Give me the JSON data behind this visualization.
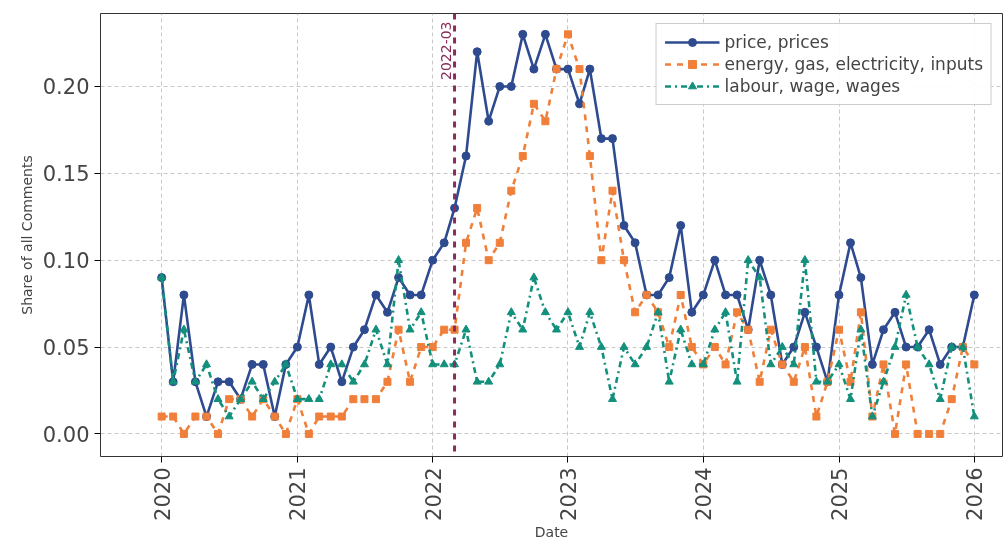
{
  "chart_data": {
    "type": "line",
    "xlabel": "Date",
    "ylabel": "Share of all Comments",
    "x": [
      "2020-01",
      "2020-02",
      "2020-03",
      "2020-04",
      "2020-05",
      "2020-06",
      "2020-07",
      "2020-08",
      "2020-09",
      "2020-10",
      "2020-11",
      "2020-12",
      "2021-01",
      "2021-02",
      "2021-03",
      "2021-04",
      "2021-05",
      "2021-06",
      "2021-07",
      "2021-08",
      "2021-09",
      "2021-10",
      "2021-11",
      "2021-12",
      "2022-01",
      "2022-02",
      "2022-03",
      "2022-04",
      "2022-05",
      "2022-06",
      "2022-07",
      "2022-08",
      "2022-09",
      "2022-10",
      "2022-11",
      "2022-12",
      "2023-01",
      "2023-02",
      "2023-03",
      "2023-04",
      "2023-05",
      "2023-06",
      "2023-07",
      "2023-08",
      "2023-09",
      "2023-10",
      "2023-11",
      "2023-12",
      "2024-01",
      "2024-02",
      "2024-03",
      "2024-04",
      "2024-05",
      "2024-06",
      "2024-07",
      "2024-08",
      "2024-09",
      "2024-10",
      "2024-11",
      "2024-12",
      "2025-01",
      "2025-02",
      "2025-03",
      "2025-04",
      "2025-05",
      "2025-06",
      "2025-07",
      "2025-08",
      "2025-09",
      "2025-10",
      "2025-11",
      "2025-12",
      "2026-01"
    ],
    "series": [
      {
        "name": "price, prices",
        "color": "#2f4b8f",
        "marker": "circle",
        "line_style": "solid",
        "values": [
          0.09,
          0.03,
          0.08,
          0.03,
          0.01,
          0.03,
          0.03,
          0.02,
          0.04,
          0.04,
          0.01,
          0.04,
          0.05,
          0.08,
          0.04,
          0.05,
          0.03,
          0.05,
          0.06,
          0.08,
          0.07,
          0.09,
          0.08,
          0.08,
          0.1,
          0.11,
          0.13,
          0.16,
          0.22,
          0.18,
          0.2,
          0.2,
          0.23,
          0.21,
          0.23,
          0.21,
          0.21,
          0.19,
          0.21,
          0.17,
          0.17,
          0.12,
          0.11,
          0.08,
          0.08,
          0.09,
          0.12,
          0.07,
          0.08,
          0.1,
          0.08,
          0.08,
          0.06,
          0.1,
          0.08,
          0.04,
          0.05,
          0.07,
          0.05,
          0.03,
          0.08,
          0.11,
          0.09,
          0.04,
          0.06,
          0.07,
          0.05,
          0.05,
          0.06,
          0.04,
          0.05,
          0.05,
          0.08
        ]
      },
      {
        "name": "energy, gas, electricity, inputs",
        "color": "#f07f3a",
        "marker": "square",
        "line_style": "dashed",
        "values": [
          0.01,
          0.01,
          0.0,
          0.01,
          0.01,
          0.0,
          0.02,
          0.02,
          0.01,
          0.02,
          0.01,
          0.0,
          0.02,
          0.0,
          0.01,
          0.01,
          0.01,
          0.02,
          0.02,
          0.02,
          0.03,
          0.06,
          0.03,
          0.05,
          0.05,
          0.06,
          0.06,
          0.11,
          0.13,
          0.1,
          0.11,
          0.14,
          0.16,
          0.19,
          0.18,
          0.21,
          0.23,
          0.21,
          0.16,
          0.1,
          0.14,
          0.1,
          0.07,
          0.08,
          0.07,
          0.05,
          0.08,
          0.05,
          0.04,
          0.05,
          0.04,
          0.07,
          0.06,
          0.03,
          0.06,
          0.04,
          0.03,
          0.05,
          0.01,
          0.03,
          0.06,
          0.03,
          0.07,
          0.01,
          0.04,
          0.0,
          0.04,
          0.0,
          0.0,
          0.0,
          0.02,
          0.05,
          0.04
        ]
      },
      {
        "name": "labour, wage, wages",
        "color": "#13907c",
        "marker": "triangle",
        "line_style": "dashdot",
        "values": [
          0.09,
          0.03,
          0.06,
          0.03,
          0.04,
          0.02,
          0.01,
          0.02,
          0.03,
          0.02,
          0.03,
          0.04,
          0.02,
          0.02,
          0.02,
          0.04,
          0.04,
          0.03,
          0.04,
          0.06,
          0.04,
          0.1,
          0.06,
          0.07,
          0.04,
          0.04,
          0.04,
          0.06,
          0.03,
          0.03,
          0.04,
          0.07,
          0.06,
          0.09,
          0.07,
          0.06,
          0.07,
          0.05,
          0.07,
          0.05,
          0.02,
          0.05,
          0.04,
          0.05,
          0.07,
          0.03,
          0.06,
          0.04,
          0.04,
          0.06,
          0.07,
          0.03,
          0.1,
          0.09,
          0.04,
          0.05,
          0.04,
          0.1,
          0.03,
          0.03,
          0.04,
          0.02,
          0.06,
          0.01,
          0.03,
          0.05,
          0.08,
          0.05,
          0.04,
          0.02,
          0.05,
          0.05,
          0.01
        ]
      }
    ],
    "xlim": [
      "2019-07-20",
      "2026-03-18"
    ],
    "ylim": [
      -0.013,
      0.242
    ],
    "xticks": [
      "2020",
      "2021",
      "2022",
      "2023",
      "2024",
      "2025",
      "2026"
    ],
    "yticks": [
      {
        "value": 0,
        "label": "0.00"
      },
      {
        "value": 0.05,
        "label": "0.05"
      },
      {
        "value": 0.1,
        "label": "0.10"
      },
      {
        "value": 0.15,
        "label": "0.15"
      },
      {
        "value": 0.2,
        "label": "0.20"
      }
    ],
    "ref_lines": [
      {
        "axis": "x",
        "value": "2022-03",
        "label": "2022-03",
        "color": "#8b2b5c",
        "line_style": "dashed"
      }
    ],
    "grid": true,
    "legend": "top right"
  }
}
